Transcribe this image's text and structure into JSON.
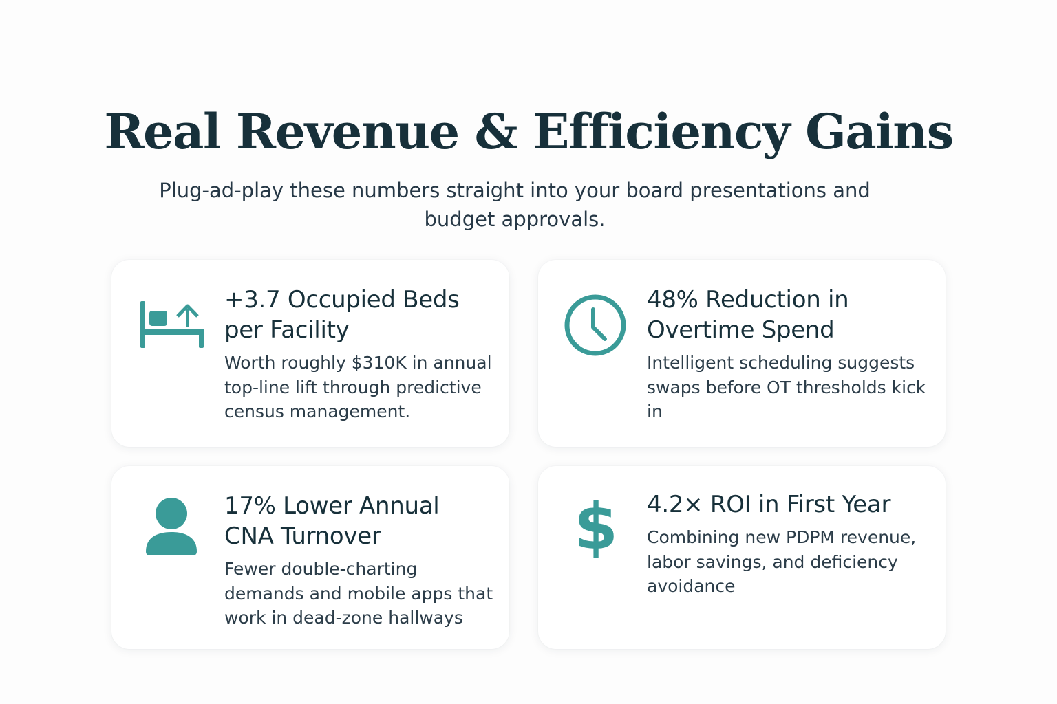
{
  "header": {
    "title": "Real Revenue & Efficiency Gains",
    "subtitle": "Plug-ad-play these numbers straight into your board presentations and budget approvals."
  },
  "accent_color": "#3a9b98",
  "cards": [
    {
      "icon": "bed-arrow-up-icon",
      "heading": "+3.7 Occupied Beds per Facility",
      "body": "Worth roughly $310K in annual top-line lift through predictive census management."
    },
    {
      "icon": "clock-icon",
      "heading": "48% Reduction in Overtime Spend",
      "body": "Intelligent scheduling suggests swaps before OT thresholds kick in"
    },
    {
      "icon": "person-icon",
      "heading": "17% Lower Annual CNA Turnover",
      "body": "Fewer double-charting demands and mobile apps that work in dead-zone hallways"
    },
    {
      "icon": "dollar-sign-icon",
      "icon_glyph": "$",
      "heading": "4.2× ROI in First Year",
      "body": "Combining new PDPM revenue, labor savings, and deficiency avoidance"
    }
  ]
}
